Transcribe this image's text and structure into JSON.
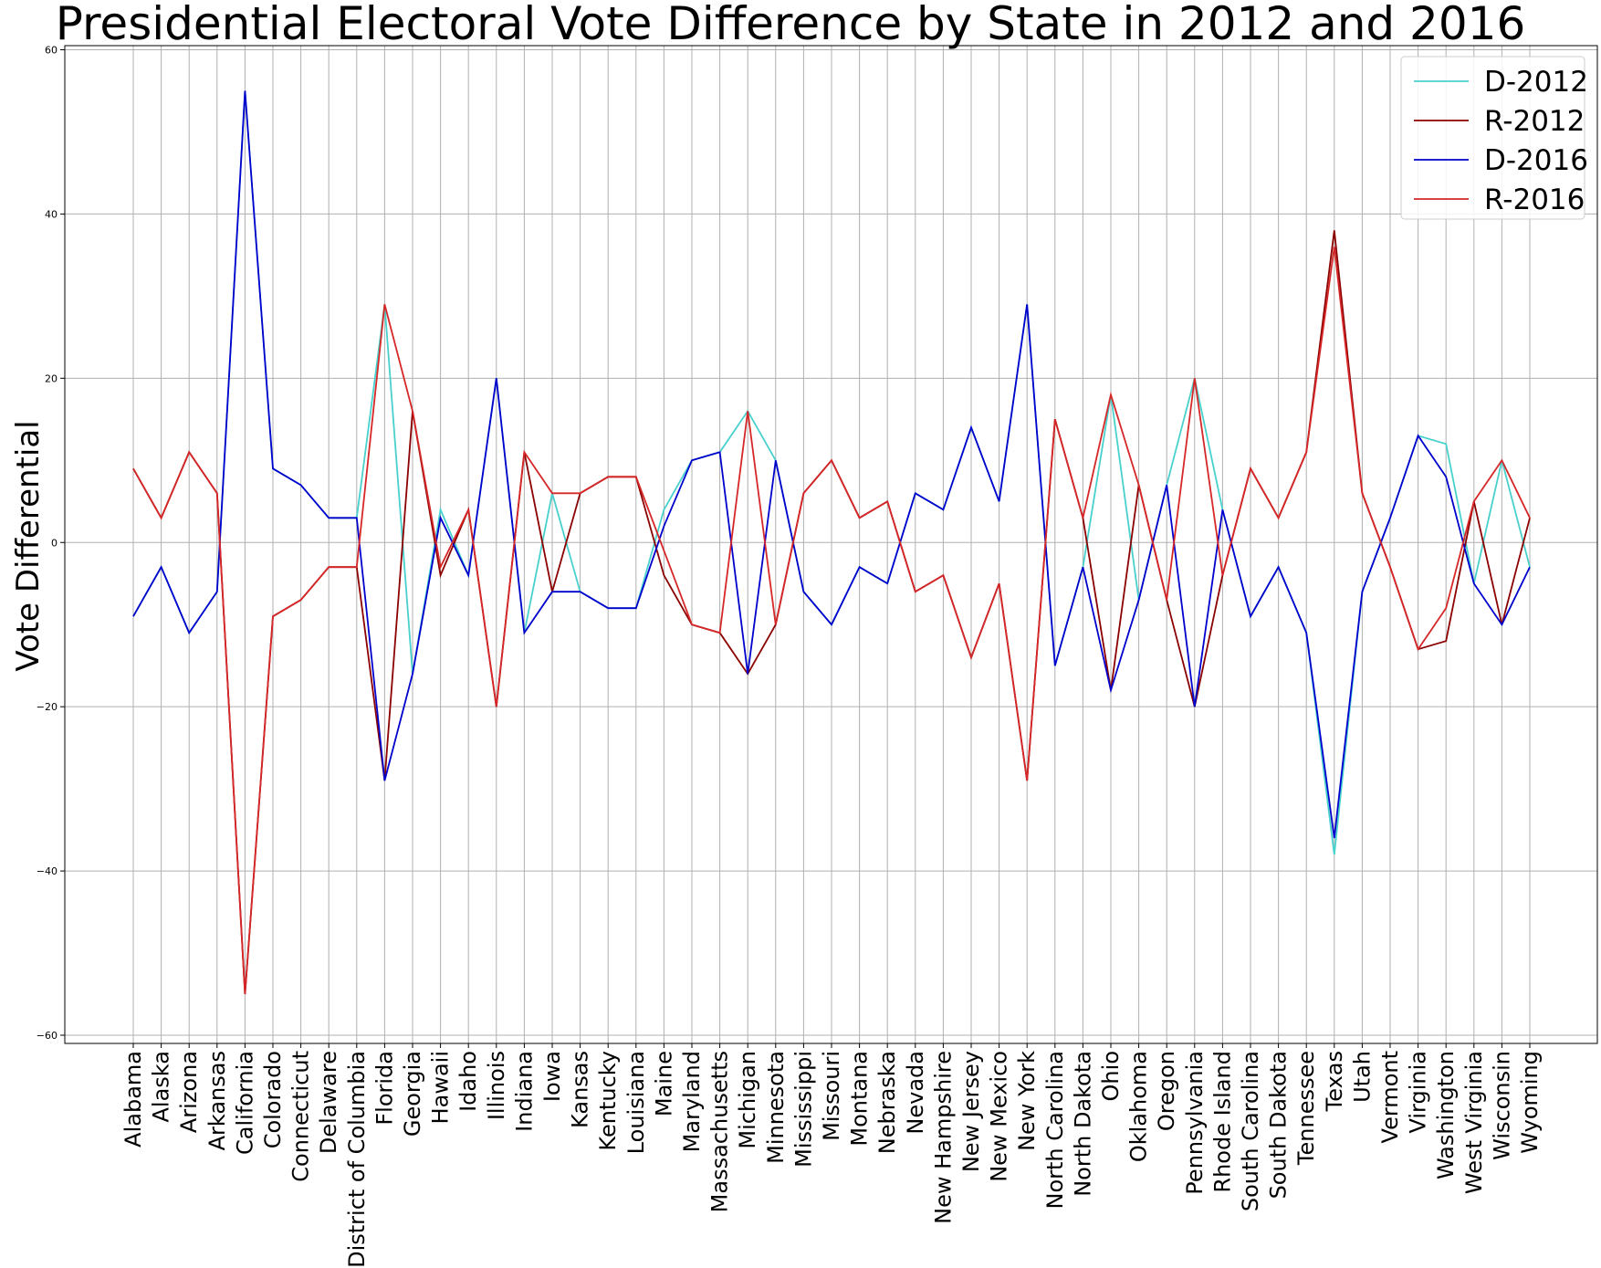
{
  "chart_data": {
    "type": "line",
    "title": "Presidential Electoral Vote Difference by State in 2012 and 2016",
    "xlabel": "",
    "ylabel": "Vote Differential",
    "ylim": [
      -61,
      60.5
    ],
    "yticks": [
      -60,
      -40,
      -20,
      0,
      20,
      40,
      60
    ],
    "ytick_labels": [
      "−60",
      "−40",
      "−20",
      "0",
      "20",
      "40",
      "60"
    ],
    "grid": true,
    "legend_position": "top-right",
    "categories": [
      "Alabama",
      "Alaska",
      "Arizona",
      "Arkansas",
      "California",
      "Colorado",
      "Connecticut",
      "Delaware",
      "District of Columbia",
      "Florida",
      "Georgia",
      "Hawaii",
      "Idaho",
      "Illinois",
      "Indiana",
      "Iowa",
      "Kansas",
      "Kentucky",
      "Louisiana",
      "Maine",
      "Maryland",
      "Massachusetts",
      "Michigan",
      "Minnesota",
      "Mississippi",
      "Missouri",
      "Montana",
      "Nebraska",
      "Nevada",
      "New Hampshire",
      "New Jersey",
      "New Mexico",
      "New York",
      "North Carolina",
      "North Dakota",
      "Ohio",
      "Oklahoma",
      "Oregon",
      "Pennsylvania",
      "Rhode Island",
      "South Carolina",
      "South Dakota",
      "Tennessee",
      "Texas",
      "Utah",
      "Vermont",
      "Virginia",
      "Washington",
      "West Virginia",
      "Wisconsin",
      "Wyoming"
    ],
    "series": [
      {
        "name": "D-2012",
        "color": "#48d1cc",
        "values": [
          -9,
          -3,
          -11,
          -6,
          55,
          9,
          7,
          3,
          3,
          29,
          -16,
          4,
          -4,
          20,
          -11,
          6,
          -6,
          -8,
          -8,
          4,
          10,
          11,
          16,
          10,
          -6,
          -10,
          -3,
          -5,
          6,
          4,
          14,
          5,
          29,
          -15,
          -3,
          18,
          -7,
          7,
          20,
          4,
          -9,
          -3,
          -11,
          -38,
          -6,
          3,
          13,
          12,
          -5,
          10,
          -3
        ]
      },
      {
        "name": "R-2012",
        "color": "#8b0000",
        "values": [
          9,
          3,
          11,
          6,
          -55,
          -9,
          -7,
          -3,
          -3,
          -29,
          16,
          -4,
          4,
          -20,
          11,
          -6,
          6,
          8,
          8,
          -4,
          -10,
          -11,
          -16,
          -10,
          6,
          10,
          3,
          5,
          -6,
          -4,
          -14,
          -5,
          -29,
          15,
          3,
          -18,
          7,
          -7,
          -20,
          -4,
          9,
          3,
          11,
          38,
          6,
          -3,
          -13,
          -12,
          5,
          -10,
          3
        ]
      },
      {
        "name": "D-2016",
        "color": "#0000cd",
        "values": [
          -9,
          -3,
          -11,
          -6,
          55,
          9,
          7,
          3,
          3,
          -29,
          -16,
          3,
          -4,
          20,
          -11,
          -6,
          -6,
          -8,
          -8,
          2,
          10,
          11,
          -16,
          10,
          -6,
          -10,
          -3,
          -5,
          6,
          4,
          14,
          5,
          29,
          -15,
          -3,
          -18,
          -7,
          7,
          -20,
          4,
          -9,
          -3,
          -11,
          -36,
          -6,
          3,
          13,
          8,
          -5,
          -10,
          -3
        ]
      },
      {
        "name": "R-2016",
        "color": "#d62728",
        "values": [
          9,
          3,
          11,
          6,
          -55,
          -9,
          -7,
          -3,
          -3,
          29,
          16,
          -3,
          4,
          -20,
          11,
          6,
          6,
          8,
          8,
          -1,
          -10,
          -11,
          16,
          -10,
          6,
          10,
          3,
          5,
          -6,
          -4,
          -14,
          -5,
          -29,
          15,
          3,
          18,
          7,
          -7,
          20,
          -4,
          9,
          3,
          11,
          36,
          6,
          -3,
          -13,
          -8,
          5,
          10,
          3
        ]
      }
    ]
  }
}
